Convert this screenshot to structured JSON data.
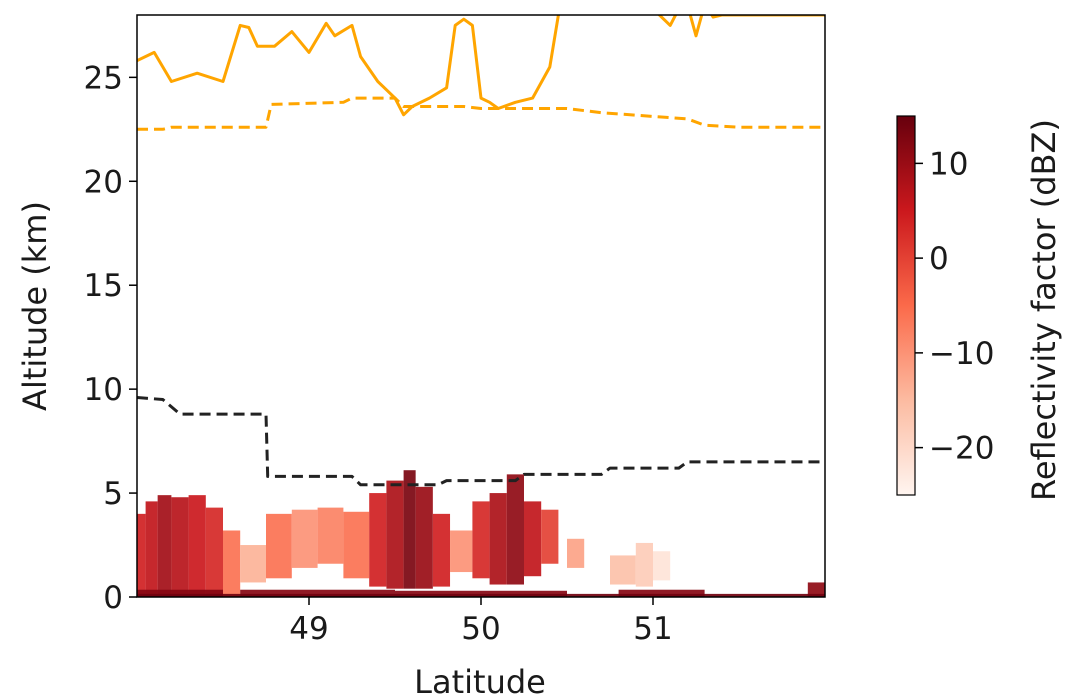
{
  "chart_data": {
    "type": "heatmap",
    "title": "",
    "xlabel": "Latitude",
    "ylabel": "Altitude (km)",
    "xlim": [
      48.0,
      52.0
    ],
    "ylim": [
      0,
      28
    ],
    "xticks": [
      49,
      50,
      51
    ],
    "xtick_labels": [
      "49",
      "50",
      "51"
    ],
    "yticks": [
      0,
      5,
      10,
      15,
      20,
      25
    ],
    "ytick_labels": [
      "0",
      "5",
      "10",
      "15",
      "20",
      "25"
    ],
    "grid": false,
    "colorbar": {
      "label": "Reflectivity factor (dBZ)",
      "range": [
        -25,
        15
      ],
      "ticks": [
        10,
        0,
        -10,
        -20
      ],
      "tick_labels": [
        "10",
        "0",
        "−10",
        "−20"
      ],
      "colormap": "Reds"
    },
    "colors": {
      "tropopause_solid": "#ffa500",
      "tropopause_dashed": "#ffa500",
      "freezing_level": "#222222"
    },
    "series": [
      {
        "style": "solid",
        "color": "#ffa500",
        "x": [
          48.0,
          48.1,
          48.2,
          48.35,
          48.5,
          48.6,
          48.65,
          48.7,
          48.8,
          48.9,
          49.0,
          49.1,
          49.15,
          49.25,
          49.3,
          49.4,
          49.5,
          49.55,
          49.6,
          49.7,
          49.8,
          49.85,
          49.9,
          49.95,
          50.0,
          50.05,
          50.1,
          50.2,
          50.3,
          50.4,
          50.45,
          50.5,
          50.6,
          50.7,
          50.8,
          50.9,
          51.0,
          51.1,
          51.15,
          51.2,
          51.25,
          51.3,
          51.35,
          51.4,
          51.9,
          52.0
        ],
        "y": [
          25.8,
          26.2,
          24.8,
          25.2,
          24.8,
          27.5,
          27.4,
          26.5,
          26.5,
          27.2,
          26.2,
          27.6,
          27.0,
          27.5,
          26.0,
          24.8,
          24.0,
          23.2,
          23.6,
          24.0,
          24.5,
          27.5,
          27.8,
          27.5,
          24.0,
          23.8,
          23.5,
          23.8,
          24.0,
          25.5,
          28.0,
          28.5,
          28.2,
          28.5,
          28.4,
          28.3,
          28.3,
          27.5,
          28.3,
          28.5,
          27.0,
          28.5,
          27.9,
          28.0,
          28.0,
          28.0
        ]
      },
      {
        "style": "dashed",
        "color": "#ffa500",
        "x": [
          48.0,
          48.15,
          48.2,
          48.75,
          48.78,
          49.2,
          49.25,
          49.5,
          49.55,
          49.9,
          50.0,
          50.5,
          50.7,
          51.2,
          51.3,
          51.5,
          52.0
        ],
        "y": [
          22.5,
          22.5,
          22.6,
          22.6,
          23.7,
          23.8,
          24.0,
          24.0,
          23.6,
          23.6,
          23.5,
          23.5,
          23.3,
          23.0,
          22.7,
          22.6,
          22.6
        ]
      },
      {
        "style": "dashed",
        "color": "#222222",
        "x": [
          48.0,
          48.15,
          48.25,
          48.75,
          48.76,
          49.25,
          49.3,
          49.75,
          49.8,
          50.2,
          50.25,
          50.7,
          50.75,
          51.15,
          51.2,
          52.0
        ],
        "y": [
          9.6,
          9.5,
          8.8,
          8.8,
          5.8,
          5.8,
          5.4,
          5.4,
          5.6,
          5.6,
          5.9,
          5.9,
          6.2,
          6.2,
          6.5,
          6.5
        ]
      }
    ],
    "cells": [
      {
        "x": [
          48.0,
          48.05
        ],
        "y": [
          0,
          4.0
        ],
        "v": 4
      },
      {
        "x": [
          48.05,
          48.12
        ],
        "y": [
          0,
          4.6
        ],
        "v": 6
      },
      {
        "x": [
          48.12,
          48.2
        ],
        "y": [
          0,
          4.9
        ],
        "v": 9
      },
      {
        "x": [
          48.2,
          48.3
        ],
        "y": [
          0,
          4.8
        ],
        "v": 7
      },
      {
        "x": [
          48.3,
          48.4
        ],
        "y": [
          0,
          4.9
        ],
        "v": 5
      },
      {
        "x": [
          48.4,
          48.5
        ],
        "y": [
          0,
          4.3
        ],
        "v": 3
      },
      {
        "x": [
          48.5,
          48.6
        ],
        "y": [
          0,
          3.2
        ],
        "v": -6
      },
      {
        "x": [
          48.6,
          48.75
        ],
        "y": [
          0.7,
          2.5
        ],
        "v": -14
      },
      {
        "x": [
          48.75,
          48.9
        ],
        "y": [
          0.9,
          4.0
        ],
        "v": -6
      },
      {
        "x": [
          48.9,
          49.05
        ],
        "y": [
          1.4,
          4.2
        ],
        "v": -10
      },
      {
        "x": [
          49.05,
          49.2
        ],
        "y": [
          1.6,
          4.3
        ],
        "v": -8
      },
      {
        "x": [
          49.2,
          49.35
        ],
        "y": [
          0.9,
          4.1
        ],
        "v": -6
      },
      {
        "x": [
          49.35,
          49.45
        ],
        "y": [
          0.5,
          5.0
        ],
        "v": 4
      },
      {
        "x": [
          49.45,
          49.55
        ],
        "y": [
          0.4,
          5.6
        ],
        "v": 8
      },
      {
        "x": [
          49.55,
          49.62
        ],
        "y": [
          0.4,
          6.1
        ],
        "v": 13
      },
      {
        "x": [
          49.62,
          49.72
        ],
        "y": [
          0.4,
          5.3
        ],
        "v": 10
      },
      {
        "x": [
          49.72,
          49.82
        ],
        "y": [
          0.5,
          4.0
        ],
        "v": 4
      },
      {
        "x": [
          49.82,
          49.95
        ],
        "y": [
          1.2,
          3.2
        ],
        "v": -10
      },
      {
        "x": [
          49.95,
          50.05
        ],
        "y": [
          0.9,
          4.6
        ],
        "v": 3
      },
      {
        "x": [
          50.05,
          50.15
        ],
        "y": [
          0.6,
          5.0
        ],
        "v": 8
      },
      {
        "x": [
          50.15,
          50.25
        ],
        "y": [
          0.6,
          5.9
        ],
        "v": 11
      },
      {
        "x": [
          50.25,
          50.35
        ],
        "y": [
          1.0,
          4.6
        ],
        "v": 6
      },
      {
        "x": [
          50.35,
          50.45
        ],
        "y": [
          1.6,
          4.2
        ],
        "v": 0
      },
      {
        "x": [
          50.5,
          50.6
        ],
        "y": [
          1.4,
          2.8
        ],
        "v": -12
      },
      {
        "x": [
          50.75,
          50.9
        ],
        "y": [
          0.6,
          2.0
        ],
        "v": -16
      },
      {
        "x": [
          50.9,
          51.0
        ],
        "y": [
          0.5,
          2.6
        ],
        "v": -18
      },
      {
        "x": [
          51.0,
          51.1
        ],
        "y": [
          0.8,
          2.2
        ],
        "v": -22
      },
      {
        "x": [
          48.0,
          48.5
        ],
        "y": [
          0,
          0.35
        ],
        "v": 12
      },
      {
        "x": [
          48.6,
          49.5
        ],
        "y": [
          0,
          0.35
        ],
        "v": 12
      },
      {
        "x": [
          49.5,
          50.5
        ],
        "y": [
          0,
          0.3
        ],
        "v": 12
      },
      {
        "x": [
          50.8,
          51.3
        ],
        "y": [
          0,
          0.35
        ],
        "v": 12
      },
      {
        "x": [
          51.9,
          52.0
        ],
        "y": [
          0,
          0.7
        ],
        "v": 11
      },
      {
        "x": [
          48.0,
          52.0
        ],
        "y": [
          0,
          0.15
        ],
        "v": 14
      }
    ]
  }
}
